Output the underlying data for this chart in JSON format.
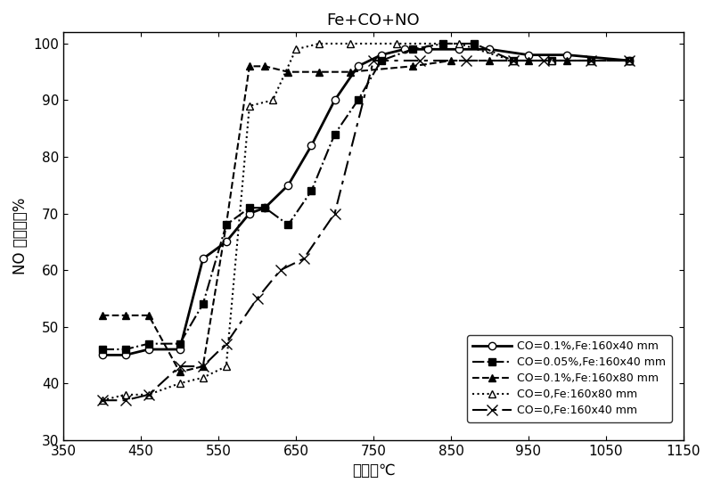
{
  "title": "Fe+CO+NO",
  "xlabel": "温度，℃",
  "ylabel": "NO 脱除率，%",
  "xlim": [
    350,
    1150
  ],
  "ylim": [
    30,
    102
  ],
  "xticks": [
    350,
    450,
    550,
    650,
    750,
    850,
    950,
    1050,
    1150
  ],
  "yticks": [
    30,
    40,
    50,
    60,
    70,
    80,
    90,
    100
  ],
  "series": [
    {
      "label": "CO=0.1%,Fe:160x40 mm",
      "x": [
        400,
        430,
        460,
        500,
        530,
        560,
        590,
        610,
        640,
        670,
        700,
        730,
        760,
        790,
        820,
        860,
        900,
        950,
        1000,
        1080
      ],
      "y": [
        45,
        45,
        46,
        46,
        62,
        65,
        70,
        71,
        75,
        82,
        90,
        96,
        98,
        99,
        99,
        99,
        99,
        98,
        98,
        97
      ],
      "linestyle": "-",
      "marker": "o",
      "color": "black",
      "markersize": 6,
      "linewidth": 2.0,
      "markerfacecolor": "white",
      "markeredgecolor": "black"
    },
    {
      "label": "CO=0.05%,Fe:160x40 mm",
      "x": [
        400,
        430,
        460,
        500,
        530,
        560,
        590,
        610,
        640,
        670,
        700,
        730,
        760,
        800,
        840,
        880,
        930,
        980,
        1030,
        1080
      ],
      "y": [
        46,
        46,
        47,
        47,
        54,
        68,
        71,
        71,
        68,
        74,
        84,
        90,
        97,
        99,
        100,
        100,
        97,
        97,
        97,
        97
      ],
      "linestyle": "-.",
      "marker": "s",
      "color": "black",
      "markersize": 6,
      "linewidth": 1.5,
      "markerfacecolor": "black",
      "markeredgecolor": "black"
    },
    {
      "label": "CO=0.1%,Fe:160x80 mm",
      "x": [
        400,
        430,
        460,
        500,
        530,
        560,
        590,
        610,
        640,
        680,
        720,
        800,
        850,
        900,
        950,
        1000,
        1080
      ],
      "y": [
        52,
        52,
        52,
        42,
        43,
        68,
        96,
        96,
        95,
        95,
        95,
        96,
        97,
        97,
        97,
        97,
        97
      ],
      "linestyle": "--",
      "marker": "^",
      "color": "black",
      "markersize": 6,
      "linewidth": 1.5,
      "markerfacecolor": "black",
      "markeredgecolor": "black"
    },
    {
      "label": "CO=0,Fe:160x80 mm",
      "x": [
        400,
        430,
        460,
        500,
        530,
        560,
        590,
        620,
        650,
        680,
        720,
        780,
        860,
        930,
        980,
        1030,
        1080
      ],
      "y": [
        37,
        38,
        38,
        40,
        41,
        43,
        89,
        90,
        99,
        100,
        100,
        100,
        100,
        97,
        97,
        97,
        97
      ],
      "linestyle": ":",
      "marker": "^",
      "color": "black",
      "markersize": 6,
      "linewidth": 1.5,
      "markerfacecolor": "white",
      "markeredgecolor": "black"
    },
    {
      "label": "CO=0,Fe:160x40 mm",
      "x": [
        400,
        430,
        460,
        500,
        530,
        560,
        600,
        630,
        660,
        700,
        750,
        810,
        870,
        930,
        970,
        1030,
        1080
      ],
      "y": [
        37,
        37,
        38,
        43,
        43,
        47,
        55,
        60,
        62,
        70,
        97,
        97,
        97,
        97,
        97,
        97,
        97
      ],
      "linestyle": "-.",
      "marker": "x",
      "color": "black",
      "markersize": 8,
      "linewidth": 1.5,
      "markerfacecolor": "black",
      "markeredgecolor": "black",
      "dashes": [
        8,
        3,
        2,
        3
      ]
    }
  ],
  "background_color": "white"
}
